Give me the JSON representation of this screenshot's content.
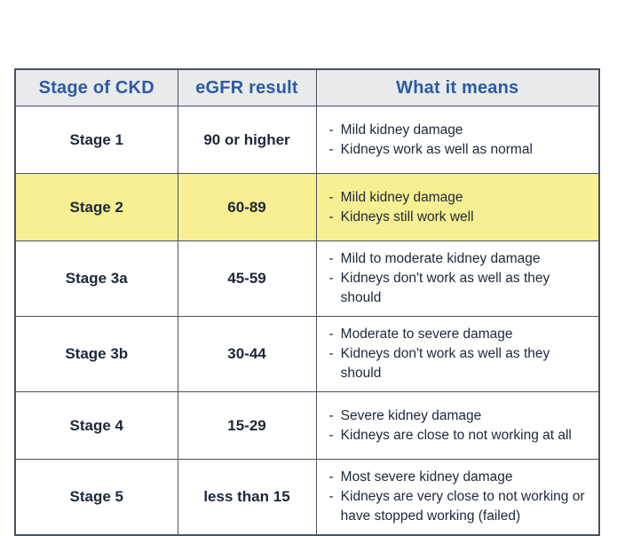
{
  "colors": {
    "header_text": "#2a5ba6",
    "header_bg": "#e9eaec",
    "border": "#4a5160",
    "body_text": "#1d2838",
    "highlight_row_bg": "#f7ef92",
    "row_bg": "#ffffff"
  },
  "chart_data": {
    "type": "table",
    "title": "",
    "bullet_char": "-",
    "columns": [
      "Stage of CKD",
      "eGFR result",
      "What it means"
    ],
    "rows": [
      {
        "stage": "Stage 1",
        "egfr": "90 or higher",
        "points": [
          "Mild kidney damage",
          "Kidneys work as well as normal"
        ],
        "highlighted": false
      },
      {
        "stage": "Stage 2",
        "egfr": "60-89",
        "points": [
          "Mild kidney damage",
          "Kidneys still work well"
        ],
        "highlighted": true
      },
      {
        "stage": "Stage 3a",
        "egfr": "45-59",
        "points": [
          "Mild to moderate kidney damage",
          "Kidneys don't work as well as they should"
        ],
        "highlighted": false
      },
      {
        "stage": "Stage 3b",
        "egfr": "30-44",
        "points": [
          "Moderate to severe damage",
          "Kidneys don't work as well as they should"
        ],
        "highlighted": false
      },
      {
        "stage": "Stage 4",
        "egfr": "15-29",
        "points": [
          "Severe kidney damage",
          "Kidneys are close to not working at all"
        ],
        "highlighted": false
      },
      {
        "stage": "Stage 5",
        "egfr": "less than 15",
        "points": [
          "Most severe kidney damage",
          "Kidneys are very close to not working or have stopped working (failed)"
        ],
        "highlighted": false
      }
    ],
    "layout": {
      "highlighted_row": "Stage 2",
      "grid": true,
      "header_row": true
    }
  }
}
